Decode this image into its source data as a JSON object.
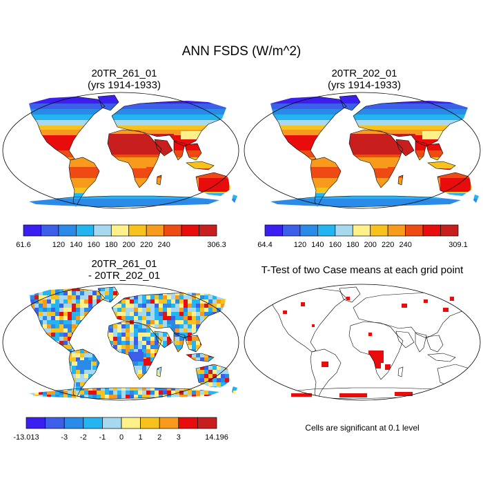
{
  "figure": {
    "title": "ANN FSDS (W/m^2)"
  },
  "panels": {
    "p1": {
      "title_line1": "20TR_261_01",
      "title_line2": "(yrs 1914-1933)"
    },
    "p2": {
      "title_line1": "20TR_202_01",
      "title_line2": "(yrs 1914-1933)"
    },
    "p3": {
      "title_line1": "20TR_261_01",
      "title_line2": "- 20TR_202_01"
    },
    "p4": {
      "title": "T-Test of two Case means at each grid point",
      "note": "Cells are significant at 0.1 level"
    }
  },
  "colors": {
    "seq": [
      "#3b1ef0",
      "#3d5ee8",
      "#2a8ae8",
      "#24b4f0",
      "#a6d8f0",
      "#fff08a",
      "#f8c21c",
      "#f89a1c",
      "#f04a14",
      "#e80c0c",
      "#c81e1e"
    ],
    "div": [
      "#3b1ef0",
      "#3d5ee8",
      "#2a8ae8",
      "#24b4f0",
      "#a6d8f0",
      "#fff08a",
      "#f8c21c",
      "#f89a1c",
      "#e80c0c",
      "#c81e1e"
    ],
    "signif": "#e80c0c",
    "land_outline": "#000000"
  },
  "chart_data": [
    {
      "type": "heatmap",
      "title": "20TR_261_01 (yrs 1914-1933)",
      "variable": "ANN FSDS (W/m^2)",
      "projection": "Robinson world map",
      "colorbar": {
        "min": 61.6,
        "max": 306.3,
        "levels": [
          120,
          140,
          160,
          180,
          200,
          220,
          240
        ],
        "tick_labels": [
          "61.6",
          "120",
          "140",
          "160",
          "180",
          "200",
          "220",
          "240",
          "306.3"
        ]
      }
    },
    {
      "type": "heatmap",
      "title": "20TR_202_01 (yrs 1914-1933)",
      "variable": "ANN FSDS (W/m^2)",
      "projection": "Robinson world map",
      "colorbar": {
        "min": 64.4,
        "max": 309.1,
        "levels": [
          120,
          140,
          160,
          180,
          200,
          220,
          240
        ],
        "tick_labels": [
          "64.4",
          "120",
          "140",
          "160",
          "180",
          "200",
          "220",
          "240",
          "309.1"
        ]
      }
    },
    {
      "type": "heatmap",
      "title": "20TR_261_01 - 20TR_202_01",
      "variable": "ANN FSDS difference (W/m^2)",
      "projection": "Robinson world map",
      "colorbar": {
        "min": -13.013,
        "max": 14.196,
        "levels": [
          -3,
          -2,
          -1,
          0,
          1,
          2,
          3
        ],
        "tick_labels": [
          "-13.013",
          "-3",
          "-2",
          "-1",
          "0",
          "1",
          "2",
          "3",
          "14.196"
        ]
      }
    },
    {
      "type": "heatmap",
      "title": "T-Test of two Case means at each grid point",
      "variable": "significance mask",
      "projection": "Robinson world map",
      "significance_level": 0.1,
      "legend_text": "Cells are significant at 0.1 level"
    }
  ]
}
